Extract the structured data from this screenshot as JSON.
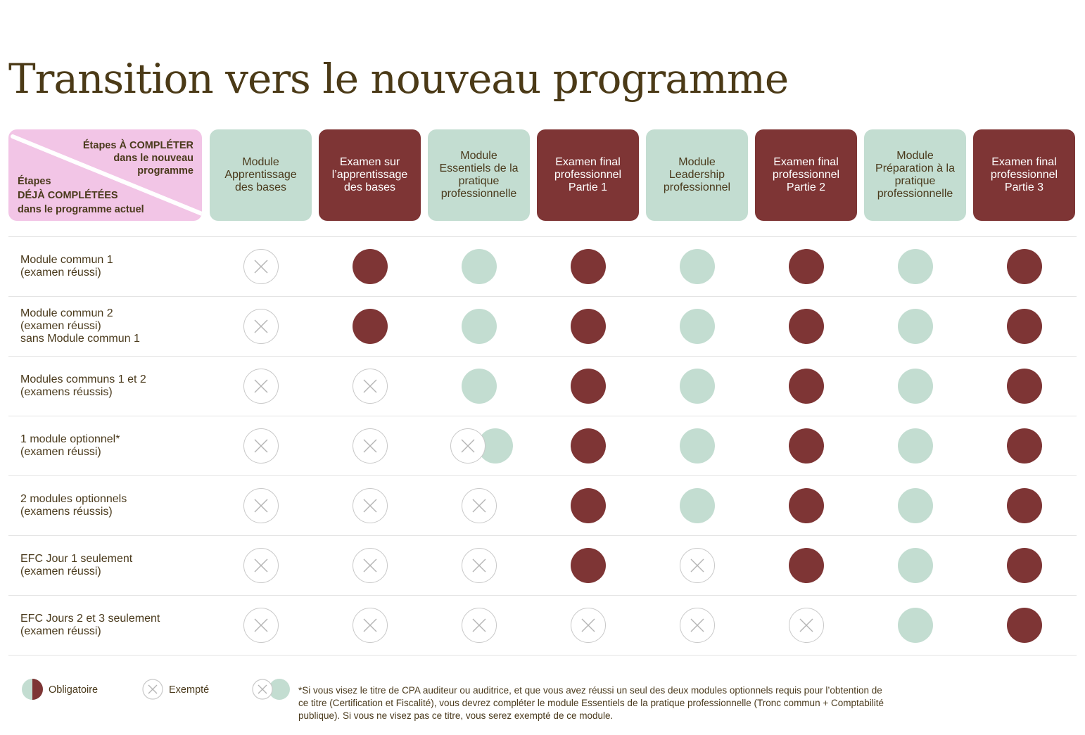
{
  "page": {
    "title": "Transition vers le nouveau programme"
  },
  "colors": {
    "mandatory_red": "#7e3535",
    "mandatory_green": "#c3ddd1",
    "corner_pink": "#f2c5e6",
    "title_brown": "#4b3a17"
  },
  "corner": {
    "todo_lines": [
      "Étapes À COMPLÉTER",
      "dans le nouveau",
      "programme"
    ],
    "done_lines": [
      "Étapes",
      "DÉJÀ COMPLÉTÉES",
      "dans le programme actuel"
    ]
  },
  "columns": [
    {
      "label": "Module Apprentissage des bases",
      "color": "green"
    },
    {
      "label": "Examen sur l’apprentissage des bases",
      "color": "red"
    },
    {
      "label": "Module Essentiels de la pratique professionnelle",
      "color": "green"
    },
    {
      "label": "Examen final professionnel Partie 1",
      "color": "red"
    },
    {
      "label": "Module Leadership professionnel",
      "color": "green"
    },
    {
      "label": "Examen final professionnel Partie 2",
      "color": "red"
    },
    {
      "label": "Module Préparation à la pratique professionnelle",
      "color": "green"
    },
    {
      "label": "Examen final professionnel Partie 3",
      "color": "red"
    }
  ],
  "rows": [
    {
      "label": "Module commun 1\n(examen réussi)",
      "cells": [
        "x",
        "red",
        "green",
        "red",
        "green",
        "red",
        "green",
        "red"
      ]
    },
    {
      "label": "Module commun 2\n(examen réussi)\nsans Module commun 1",
      "cells": [
        "x",
        "red",
        "green",
        "red",
        "green",
        "red",
        "green",
        "red"
      ]
    },
    {
      "label": "Modules communs 1 et 2\n(examens réussis)",
      "cells": [
        "x",
        "x",
        "green",
        "red",
        "green",
        "red",
        "green",
        "red"
      ]
    },
    {
      "label": "1 module optionnel*\n(examen réussi)",
      "cells": [
        "x",
        "x",
        "x-green",
        "red",
        "green",
        "red",
        "green",
        "red"
      ]
    },
    {
      "label": "2 modules optionnels\n(examens réussis)",
      "cells": [
        "x",
        "x",
        "x",
        "red",
        "green",
        "red",
        "green",
        "red"
      ]
    },
    {
      "label": "EFC Jour 1 seulement\n(examen réussi)",
      "cells": [
        "x",
        "x",
        "x",
        "red",
        "x",
        "red",
        "green",
        "red"
      ]
    },
    {
      "label": "EFC Jours 2 et 3 seulement\n(examen réussi)",
      "cells": [
        "x",
        "x",
        "x",
        "x",
        "x",
        "x",
        "green",
        "red"
      ]
    }
  ],
  "legend": {
    "mandatory": "Obligatoire",
    "exempt": "Exempté",
    "footnote": "*Si vous visez le titre de CPA auditeur ou auditrice, et que vous avez réussi un seul des deux modules optionnels requis pour l’obtention de ce titre (Certification et Fiscalité), vous devrez compléter le module Essentiels de la pratique professionnelle (Tronc commun + Comptabilité publique). Si vous ne visez pas ce titre, vous serez exempté de ce module."
  }
}
